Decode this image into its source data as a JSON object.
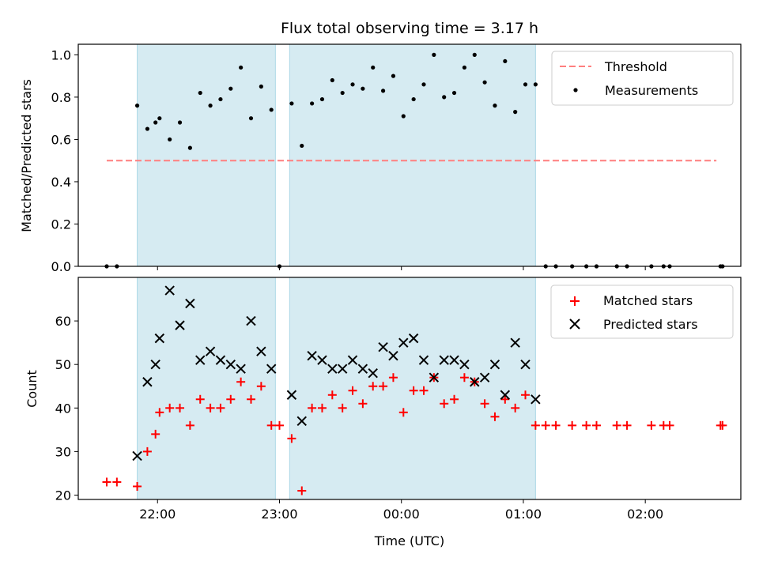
{
  "chart_data": [
    {
      "type": "scatter",
      "title": "Flux total observing time = 3.17 h",
      "xlabel": "",
      "ylabel": "Matched/Predicted stars",
      "ylim": [
        0,
        1.05
      ],
      "yticks": [
        "0.0",
        "0.2",
        "0.4",
        "0.6",
        "0.8",
        "1.0"
      ],
      "legend_position": "top-right",
      "threshold": {
        "name": "Threshold",
        "value": 0.5,
        "x_start": "21:35",
        "x_end": "02:35",
        "color": "#ff7f7f"
      },
      "series": [
        {
          "name": "Measurements",
          "color": "#000000",
          "points": [
            [
              "21:35",
              0.0
            ],
            [
              "21:40",
              0.0
            ],
            [
              "21:50",
              0.76
            ],
            [
              "21:55",
              0.65
            ],
            [
              "21:59",
              0.68
            ],
            [
              "22:01",
              0.7
            ],
            [
              "22:06",
              0.6
            ],
            [
              "22:11",
              0.68
            ],
            [
              "22:16",
              0.56
            ],
            [
              "22:21",
              0.82
            ],
            [
              "22:26",
              0.76
            ],
            [
              "22:31",
              0.79
            ],
            [
              "22:36",
              0.84
            ],
            [
              "22:41",
              0.94
            ],
            [
              "22:46",
              0.7
            ],
            [
              "22:51",
              0.85
            ],
            [
              "22:56",
              0.74
            ],
            [
              "23:00",
              0.0
            ],
            [
              "23:06",
              0.77
            ],
            [
              "23:11",
              0.57
            ],
            [
              "23:16",
              0.77
            ],
            [
              "23:21",
              0.79
            ],
            [
              "23:26",
              0.88
            ],
            [
              "23:31",
              0.82
            ],
            [
              "23:36",
              0.86
            ],
            [
              "23:41",
              0.84
            ],
            [
              "23:46",
              0.94
            ],
            [
              "23:51",
              0.83
            ],
            [
              "23:56",
              0.9
            ],
            [
              "00:01",
              0.71
            ],
            [
              "00:06",
              0.79
            ],
            [
              "00:11",
              0.86
            ],
            [
              "00:16",
              1.0
            ],
            [
              "00:21",
              0.8
            ],
            [
              "00:26",
              0.82
            ],
            [
              "00:31",
              0.94
            ],
            [
              "00:36",
              1.0
            ],
            [
              "00:41",
              0.87
            ],
            [
              "00:46",
              0.76
            ],
            [
              "00:51",
              0.97
            ],
            [
              "00:56",
              0.73
            ],
            [
              "01:01",
              0.86
            ],
            [
              "01:06",
              0.86
            ],
            [
              "01:11",
              0.0
            ],
            [
              "01:16",
              0.0
            ],
            [
              "01:24",
              0.0
            ],
            [
              "01:31",
              0.0
            ],
            [
              "01:36",
              0.0
            ],
            [
              "01:46",
              0.0
            ],
            [
              "01:51",
              0.0
            ],
            [
              "02:03",
              0.0
            ],
            [
              "02:09",
              0.0
            ],
            [
              "02:12",
              0.0
            ],
            [
              "02:37",
              0.0
            ],
            [
              "02:38",
              0.0
            ]
          ]
        }
      ]
    },
    {
      "type": "scatter",
      "title": "",
      "xlabel": "Time (UTC)",
      "ylabel": "Count",
      "ylim": [
        19,
        70
      ],
      "yticks": [
        "20",
        "30",
        "40",
        "50",
        "60"
      ],
      "xticks": [
        "22:00",
        "23:00",
        "00:00",
        "01:00",
        "02:00"
      ],
      "legend_position": "top-right",
      "series": [
        {
          "name": "Matched stars",
          "color": "#ff0000",
          "marker": "plus",
          "points": [
            [
              "21:35",
              23
            ],
            [
              "21:40",
              23
            ],
            [
              "21:50",
              22
            ],
            [
              "21:55",
              30
            ],
            [
              "21:59",
              34
            ],
            [
              "22:01",
              39
            ],
            [
              "22:06",
              40
            ],
            [
              "22:11",
              40
            ],
            [
              "22:16",
              36
            ],
            [
              "22:21",
              42
            ],
            [
              "22:26",
              40
            ],
            [
              "22:31",
              40
            ],
            [
              "22:36",
              42
            ],
            [
              "22:41",
              46
            ],
            [
              "22:46",
              42
            ],
            [
              "22:51",
              45
            ],
            [
              "22:56",
              36
            ],
            [
              "23:00",
              36
            ],
            [
              "23:06",
              33
            ],
            [
              "23:11",
              21
            ],
            [
              "23:16",
              40
            ],
            [
              "23:21",
              40
            ],
            [
              "23:26",
              43
            ],
            [
              "23:31",
              40
            ],
            [
              "23:36",
              44
            ],
            [
              "23:41",
              41
            ],
            [
              "23:46",
              45
            ],
            [
              "23:51",
              45
            ],
            [
              "23:56",
              47
            ],
            [
              "00:01",
              39
            ],
            [
              "00:06",
              44
            ],
            [
              "00:11",
              44
            ],
            [
              "00:16",
              47
            ],
            [
              "00:21",
              41
            ],
            [
              "00:26",
              42
            ],
            [
              "00:31",
              47
            ],
            [
              "00:36",
              46
            ],
            [
              "00:41",
              41
            ],
            [
              "00:46",
              38
            ],
            [
              "00:51",
              42
            ],
            [
              "00:56",
              40
            ],
            [
              "01:01",
              43
            ],
            [
              "01:06",
              36
            ],
            [
              "01:11",
              36
            ],
            [
              "01:16",
              36
            ],
            [
              "01:24",
              36
            ],
            [
              "01:31",
              36
            ],
            [
              "01:36",
              36
            ],
            [
              "01:46",
              36
            ],
            [
              "01:51",
              36
            ],
            [
              "02:03",
              36
            ],
            [
              "02:09",
              36
            ],
            [
              "02:12",
              36
            ],
            [
              "02:37",
              36
            ],
            [
              "02:38",
              36
            ]
          ]
        },
        {
          "name": "Predicted stars",
          "color": "#000000",
          "marker": "x",
          "points": [
            [
              "21:50",
              29
            ],
            [
              "21:55",
              46
            ],
            [
              "21:59",
              50
            ],
            [
              "22:01",
              56
            ],
            [
              "22:06",
              67
            ],
            [
              "22:11",
              59
            ],
            [
              "22:16",
              64
            ],
            [
              "22:21",
              51
            ],
            [
              "22:26",
              53
            ],
            [
              "22:31",
              51
            ],
            [
              "22:36",
              50
            ],
            [
              "22:41",
              49
            ],
            [
              "22:46",
              60
            ],
            [
              "22:51",
              53
            ],
            [
              "22:56",
              49
            ],
            [
              "23:06",
              43
            ],
            [
              "23:11",
              37
            ],
            [
              "23:16",
              52
            ],
            [
              "23:21",
              51
            ],
            [
              "23:26",
              49
            ],
            [
              "23:31",
              49
            ],
            [
              "23:36",
              51
            ],
            [
              "23:41",
              49
            ],
            [
              "23:46",
              48
            ],
            [
              "23:51",
              54
            ],
            [
              "23:56",
              52
            ],
            [
              "00:01",
              55
            ],
            [
              "00:06",
              56
            ],
            [
              "00:11",
              51
            ],
            [
              "00:16",
              47
            ],
            [
              "00:21",
              51
            ],
            [
              "00:26",
              51
            ],
            [
              "00:31",
              50
            ],
            [
              "00:36",
              46
            ],
            [
              "00:41",
              47
            ],
            [
              "00:46",
              50
            ],
            [
              "00:51",
              43
            ],
            [
              "00:56",
              55
            ],
            [
              "01:01",
              50
            ],
            [
              "01:06",
              42
            ]
          ]
        }
      ]
    }
  ],
  "shaded_intervals": [
    {
      "start": "21:50",
      "end": "22:58",
      "color": "#add8e6"
    },
    {
      "start": "23:05",
      "end": "01:06",
      "color": "#add8e6"
    }
  ]
}
